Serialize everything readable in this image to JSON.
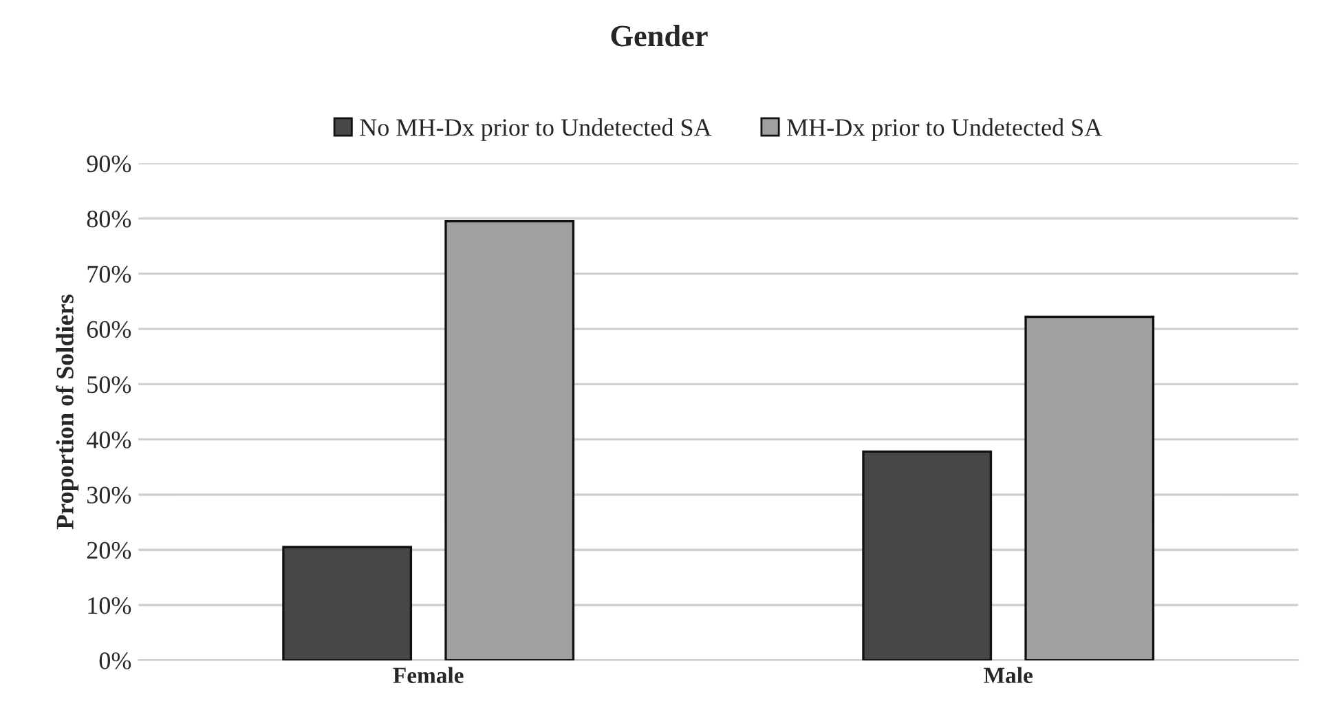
{
  "chart_data": {
    "type": "bar",
    "title": "Gender",
    "ylabel": "Proportion of Soldiers",
    "categories": [
      "Female",
      "Male"
    ],
    "series": [
      {
        "name": "No MH-Dx prior to Undetected SA",
        "color": "#474747",
        "values": [
          20.5,
          37.8
        ]
      },
      {
        "name": "MH-Dx prior to Undetected SA",
        "color": "#a0a0a0",
        "values": [
          79.5,
          62.2
        ]
      }
    ],
    "ylim": [
      0,
      90
    ],
    "yticks": [
      {
        "value": 0,
        "label": "0%"
      },
      {
        "value": 10,
        "label": "10%"
      },
      {
        "value": 20,
        "label": "20%"
      },
      {
        "value": 30,
        "label": "30%"
      },
      {
        "value": 40,
        "label": "40%"
      },
      {
        "value": 50,
        "label": "50%"
      },
      {
        "value": 60,
        "label": "60%"
      },
      {
        "value": 70,
        "label": "70%"
      },
      {
        "value": 80,
        "label": "80%"
      },
      {
        "value": 90,
        "label": "90%"
      }
    ],
    "grid": "y",
    "legend": "top"
  }
}
